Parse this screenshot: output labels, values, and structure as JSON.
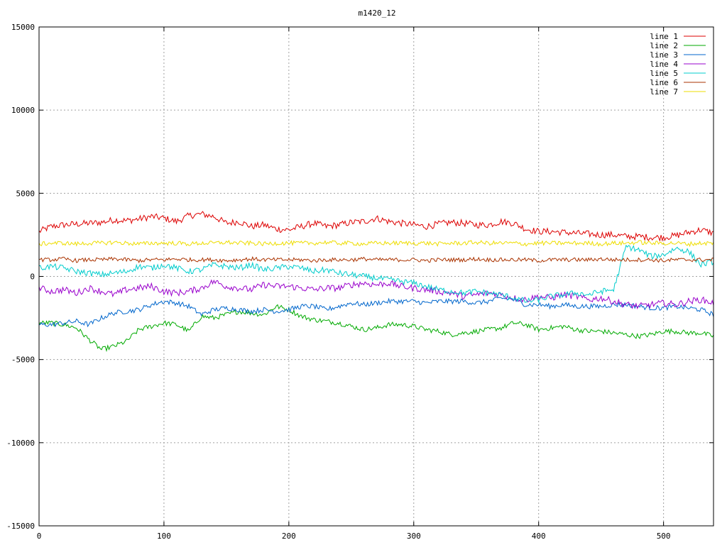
{
  "chart_data": {
    "type": "line",
    "title": "m1420_12",
    "xlabel": "",
    "ylabel": "",
    "xlim": [
      0,
      540
    ],
    "ylim": [
      -15000,
      15000
    ],
    "x_ticks": [
      0,
      100,
      200,
      300,
      400,
      500
    ],
    "y_ticks": [
      -15000,
      -10000,
      -5000,
      0,
      5000,
      10000,
      15000
    ],
    "grid": true,
    "legend_position": "top-right",
    "x_step": 10,
    "series": [
      {
        "name": "line 1",
        "color": "#dd0000",
        "noise": 200,
        "values": [
          2700,
          3000,
          3100,
          3150,
          3200,
          3250,
          3400,
          3350,
          3450,
          3600,
          3500,
          3300,
          3650,
          3750,
          3600,
          3200,
          3300,
          3000,
          3100,
          2850,
          2800,
          3000,
          3200,
          3000,
          3100,
          3250,
          3300,
          3500,
          3300,
          3200,
          3100,
          3000,
          3150,
          3250,
          3200,
          3100,
          3100,
          3300,
          3200,
          2850,
          2700,
          2700,
          2650,
          2600,
          2550,
          2500,
          2500,
          2400,
          2400,
          2350,
          2350,
          2450,
          2650,
          2800,
          2600
        ]
      },
      {
        "name": "line 2",
        "color": "#00aa00",
        "noise": 150,
        "values": [
          -2800,
          -2800,
          -2900,
          -3100,
          -3800,
          -4400,
          -4200,
          -3900,
          -3200,
          -3000,
          -2800,
          -2900,
          -3300,
          -2400,
          -2500,
          -2300,
          -2100,
          -2200,
          -2300,
          -1800,
          -2000,
          -2400,
          -2600,
          -2700,
          -2800,
          -3000,
          -3200,
          -3100,
          -2900,
          -2900,
          -3000,
          -3200,
          -3300,
          -3500,
          -3400,
          -3300,
          -3200,
          -3100,
          -2800,
          -2900,
          -3200,
          -3100,
          -3000,
          -3200,
          -3300,
          -3300,
          -3400,
          -3500,
          -3600,
          -3500,
          -3300,
          -3300,
          -3400,
          -3400,
          -3600
        ]
      },
      {
        "name": "line 3",
        "color": "#0066cc",
        "noise": 150,
        "values": [
          -2900,
          -2900,
          -2800,
          -2700,
          -2900,
          -2500,
          -2200,
          -2100,
          -2000,
          -1700,
          -1500,
          -1600,
          -1800,
          -2300,
          -2000,
          -1900,
          -2000,
          -2100,
          -2000,
          -2100,
          -2000,
          -1800,
          -1800,
          -2000,
          -1800,
          -1600,
          -1700,
          -1600,
          -1500,
          -1500,
          -1500,
          -1600,
          -1500,
          -1500,
          -1500,
          -1600,
          -1500,
          -1300,
          -1400,
          -1700,
          -1700,
          -1800,
          -1700,
          -1800,
          -1800,
          -1800,
          -1700,
          -1700,
          -1800,
          -1900,
          -1900,
          -1800,
          -1900,
          -2000,
          -2300
        ]
      },
      {
        "name": "line 4",
        "color": "#9900cc",
        "noise": 200,
        "values": [
          -700,
          -900,
          -800,
          -1000,
          -700,
          -900,
          -1100,
          -800,
          -700,
          -600,
          -900,
          -1000,
          -900,
          -700,
          -300,
          -600,
          -700,
          -800,
          -500,
          -600,
          -600,
          -700,
          -800,
          -700,
          -700,
          -500,
          -400,
          -500,
          -400,
          -600,
          -700,
          -800,
          -900,
          -1000,
          -1200,
          -1100,
          -1000,
          -1100,
          -1300,
          -1400,
          -1200,
          -1300,
          -1100,
          -1200,
          -1400,
          -1300,
          -1500,
          -1700,
          -1800,
          -1700,
          -1600,
          -1700,
          -1500,
          -1400,
          -1600
        ]
      },
      {
        "name": "line 5",
        "color": "#00cccc",
        "noise": 180,
        "values": [
          500,
          600,
          500,
          300,
          200,
          100,
          200,
          300,
          600,
          500,
          700,
          500,
          300,
          400,
          700,
          600,
          500,
          700,
          400,
          500,
          600,
          500,
          300,
          400,
          200,
          100,
          0,
          -100,
          -200,
          -300,
          -400,
          -600,
          -800,
          -900,
          -1000,
          -900,
          -1000,
          -1100,
          -1300,
          -1500,
          -1400,
          -1200,
          -1100,
          -1000,
          -1100,
          -900,
          -800,
          1800,
          1600,
          1200,
          1300,
          1700,
          1500,
          700,
          900
        ]
      },
      {
        "name": "line 6",
        "color": "#aa3300",
        "noise": 120,
        "values": [
          1000,
          1000,
          1050,
          950,
          1000,
          1000,
          1050,
          1000,
          950,
          1000,
          1000,
          1050,
          1000,
          1000,
          1000,
          950,
          1000,
          1050,
          1000,
          1000,
          1000,
          1000,
          950,
          1000,
          1000,
          1000,
          1050,
          1000,
          1000,
          1000,
          1000,
          950,
          1000,
          1000,
          1000,
          1050,
          1000,
          1000,
          1000,
          1000,
          950,
          1000,
          1000,
          1000,
          1000,
          1050,
          1000,
          1000,
          1000,
          1000,
          950,
          1000,
          1000,
          1000,
          1000
        ]
      },
      {
        "name": "line 7",
        "color": "#eedd00",
        "noise": 130,
        "values": [
          1950,
          2000,
          2000,
          1950,
          2000,
          2000,
          2050,
          2000,
          1950,
          2000,
          2000,
          2000,
          1950,
          2000,
          2000,
          2050,
          2000,
          2000,
          1950,
          2000,
          2000,
          2000,
          2000,
          2050,
          2000,
          2000,
          1950,
          2000,
          2000,
          2000,
          2000,
          2000,
          1950,
          2000,
          2000,
          2050,
          2000,
          2000,
          2000,
          1950,
          2000,
          2000,
          2000,
          2000,
          2000,
          1950,
          2000,
          2000,
          2050,
          2000,
          2000,
          2000,
          1950,
          2000,
          2000
        ]
      }
    ]
  }
}
